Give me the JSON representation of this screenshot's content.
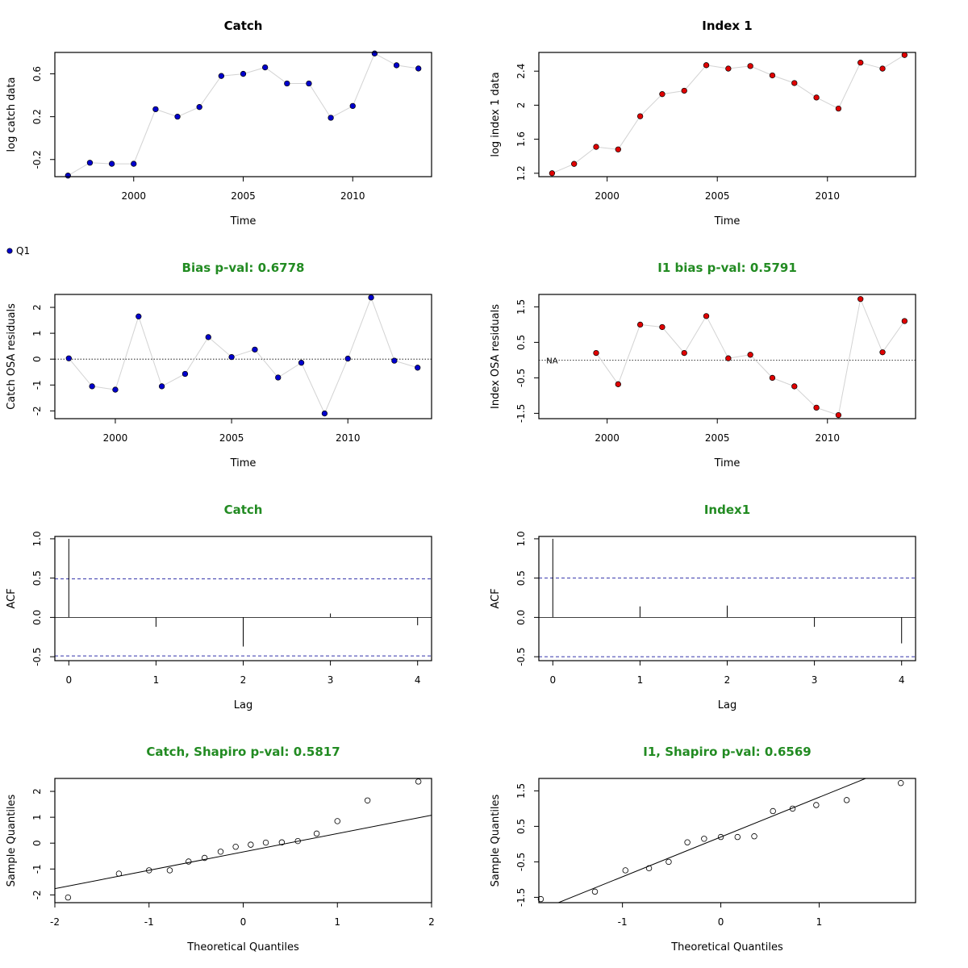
{
  "colors": {
    "title_plain": "#000000",
    "title_green": "#228B22",
    "catch_points": "#0000CD",
    "index_points": "#E00000",
    "connector": "#D3D3D3",
    "ci_line": "#3333AA"
  },
  "legend": {
    "label": "Q1",
    "marker": "blue-point"
  },
  "na_label": "NA",
  "chart_data": [
    {
      "id": "catch-data",
      "type": "line",
      "marker": "filled-circle",
      "color_key": "catch_points",
      "title": "Catch",
      "title_color_key": "title_plain",
      "xlabel": "Time",
      "ylabel": "log catch data",
      "xlim": [
        1996.4,
        2013.6
      ],
      "ylim": [
        -0.36,
        0.8
      ],
      "xticks": [
        2000,
        2005,
        2010
      ],
      "yticks": [
        -0.2,
        0.2,
        0.6
      ],
      "x": [
        1997,
        1998,
        1999,
        2000,
        2001,
        2002,
        2003,
        2004,
        2005,
        2006,
        2007,
        2008,
        2009,
        2010,
        2011,
        2012,
        2013
      ],
      "y": [
        -0.35,
        -0.23,
        -0.24,
        -0.24,
        0.27,
        0.2,
        0.29,
        0.58,
        0.6,
        0.66,
        0.51,
        0.51,
        0.19,
        0.3,
        0.79,
        0.68,
        0.65
      ]
    },
    {
      "id": "index-data",
      "type": "line",
      "marker": "filled-circle",
      "color_key": "index_points",
      "title": "Index 1",
      "title_color_key": "title_plain",
      "xlabel": "Time",
      "ylabel": "log index 1 data",
      "xlim": [
        1996.9,
        2014.0
      ],
      "ylim": [
        1.16,
        2.62
      ],
      "xticks": [
        2000,
        2005,
        2010
      ],
      "yticks": [
        1.2,
        1.6,
        2.0,
        2.4
      ],
      "x": [
        1997.5,
        1998.5,
        1999.5,
        2000.5,
        2001.5,
        2002.5,
        2003.5,
        2004.5,
        2005.5,
        2006.5,
        2007.5,
        2008.5,
        2009.5,
        2010.5,
        2011.5,
        2012.5,
        2013.5
      ],
      "y": [
        1.2,
        1.31,
        1.51,
        1.48,
        1.87,
        2.13,
        2.17,
        2.47,
        2.43,
        2.46,
        2.35,
        2.26,
        2.09,
        1.96,
        2.5,
        2.43,
        2.59
      ]
    },
    {
      "id": "catch-resid",
      "type": "line",
      "marker": "filled-circle",
      "color_key": "catch_points",
      "title": "Bias p-val: 0.6778",
      "title_color_key": "title_green",
      "xlabel": "Time",
      "ylabel": "Catch OSA residuals",
      "xlim": [
        1997.4,
        2013.6
      ],
      "ylim": [
        -2.3,
        2.5
      ],
      "xticks": [
        2000,
        2005,
        2010
      ],
      "yticks": [
        -2,
        -1,
        0,
        1,
        2
      ],
      "hline": 0,
      "x": [
        1998,
        1999,
        2000,
        2001,
        2002,
        2003,
        2004,
        2005,
        2006,
        2007,
        2008,
        2009,
        2010,
        2011,
        2012,
        2013
      ],
      "y": [
        0.03,
        -1.05,
        -1.18,
        1.65,
        -1.05,
        -0.57,
        0.85,
        0.08,
        0.37,
        -0.71,
        -0.14,
        -2.1,
        0.02,
        2.38,
        -0.06,
        -0.33
      ]
    },
    {
      "id": "index-resid",
      "type": "line",
      "marker": "filled-circle",
      "color_key": "index_points",
      "title": "I1 bias p-val: 0.5791",
      "title_color_key": "title_green",
      "xlabel": "Time",
      "ylabel": "Index OSA residuals",
      "xlim": [
        1996.9,
        2014.0
      ],
      "ylim": [
        -1.65,
        1.85
      ],
      "xticks": [
        2000,
        2005,
        2010
      ],
      "yticks": [
        -1.5,
        -0.5,
        0.5,
        1.5
      ],
      "hline": 0,
      "na_x": 1997.5,
      "x": [
        1999.5,
        2000.5,
        2001.5,
        2002.5,
        2003.5,
        2004.5,
        2005.5,
        2006.5,
        2007.5,
        2008.5,
        2009.5,
        2010.5,
        2011.5,
        2012.5,
        2013.5
      ],
      "y": [
        0.2,
        -0.68,
        1.0,
        0.93,
        0.2,
        1.24,
        0.05,
        0.15,
        -0.5,
        -0.74,
        -1.34,
        -1.55,
        1.72,
        0.22,
        1.1
      ]
    },
    {
      "id": "catch-acf",
      "type": "bar",
      "marker": "spike",
      "title": "Catch",
      "title_color_key": "title_green",
      "xlabel": "Lag",
      "ylabel": "ACF",
      "xlim": [
        -0.16,
        4.16
      ],
      "ylim": [
        -0.55,
        1.03
      ],
      "xticks": [
        0,
        1,
        2,
        3,
        4
      ],
      "yticks": [
        -0.5,
        0.0,
        0.5,
        1.0
      ],
      "ci": 0.49,
      "lags": [
        0,
        1,
        2,
        3,
        4
      ],
      "values": [
        1.0,
        -0.12,
        -0.37,
        0.05,
        -0.1
      ]
    },
    {
      "id": "index-acf",
      "type": "bar",
      "marker": "spike",
      "title": "Index1",
      "title_color_key": "title_green",
      "xlabel": "Lag",
      "ylabel": "ACF",
      "xlim": [
        -0.16,
        4.16
      ],
      "ylim": [
        -0.55,
        1.03
      ],
      "xticks": [
        0,
        1,
        2,
        3,
        4
      ],
      "yticks": [
        -0.5,
        0.0,
        0.5,
        1.0
      ],
      "ci": 0.5,
      "lags": [
        0,
        1,
        2,
        3,
        4
      ],
      "values": [
        1.0,
        0.14,
        0.15,
        -0.12,
        -0.33
      ]
    },
    {
      "id": "catch-qq",
      "type": "scatter",
      "marker": "open-circle",
      "title": "Catch, Shapiro p-val: 0.5817",
      "title_color_key": "title_green",
      "xlabel": "Theoretical Quantiles",
      "ylabel": "Sample Quantiles",
      "xlim": [
        -2.0,
        2.0
      ],
      "ylim": [
        -2.3,
        2.5
      ],
      "xticks": [
        -2,
        -1,
        0,
        1,
        2
      ],
      "yticks": [
        -2,
        -1,
        0,
        1,
        2
      ],
      "qqline": {
        "intercept": -0.34,
        "slope": 0.71
      },
      "x": [
        -1.86,
        -1.32,
        -1.0,
        -0.78,
        -0.58,
        -0.41,
        -0.24,
        -0.08,
        0.08,
        0.24,
        0.41,
        0.58,
        0.78,
        1.0,
        1.32,
        1.86
      ],
      "y": [
        -2.1,
        -1.18,
        -1.05,
        -1.05,
        -0.71,
        -0.57,
        -0.33,
        -0.14,
        -0.06,
        0.02,
        0.03,
        0.08,
        0.37,
        0.85,
        1.65,
        2.38
      ]
    },
    {
      "id": "index-qq",
      "type": "scatter",
      "marker": "open-circle",
      "title": "I1, Shapiro p-val: 0.6569",
      "title_color_key": "title_green",
      "xlabel": "Theoretical Quantiles",
      "ylabel": "Sample Quantiles",
      "xlim": [
        -1.85,
        1.98
      ],
      "ylim": [
        -1.65,
        1.85
      ],
      "xticks": [
        -1,
        0,
        1
      ],
      "yticks": [
        -1.5,
        -0.5,
        0.5,
        1.5
      ],
      "qqline": {
        "intercept": 0.2,
        "slope": 1.12
      },
      "x": [
        -1.83,
        -1.28,
        -0.97,
        -0.73,
        -0.53,
        -0.34,
        -0.17,
        0.0,
        0.17,
        0.34,
        0.53,
        0.73,
        0.97,
        1.28,
        1.83
      ],
      "y": [
        -1.55,
        -1.34,
        -0.74,
        -0.68,
        -0.5,
        0.05,
        0.15,
        0.2,
        0.2,
        0.22,
        0.93,
        1.0,
        1.1,
        1.24,
        1.72
      ]
    }
  ]
}
